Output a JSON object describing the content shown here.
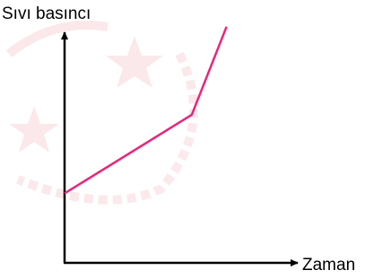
{
  "chart_data": {
    "type": "line",
    "x_label": "Zaman",
    "y_label": "Sıvı basıncı",
    "x": [
      0,
      5.5,
      7
    ],
    "values": [
      3,
      6.4,
      10.2
    ],
    "color": "#e8267a",
    "xlim": [
      0,
      10
    ],
    "ylim": [
      0,
      10
    ]
  }
}
